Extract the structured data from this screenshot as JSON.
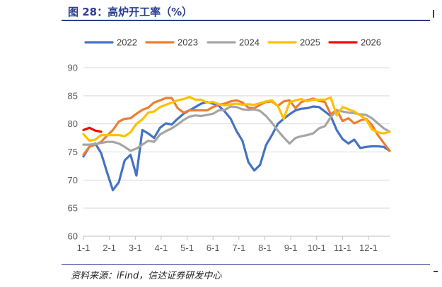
{
  "header": {
    "title": "图 28：高炉开工率（%）"
  },
  "footer": {
    "source": "资料来源：iFind，信达证券研发中心"
  },
  "chart_data": {
    "type": "line",
    "title": "高炉开工率（%）",
    "xlabel": "",
    "ylabel": "",
    "ylim": [
      60,
      90
    ],
    "yticks": [
      60,
      65,
      70,
      75,
      80,
      85,
      90
    ],
    "x_ticks": [
      "1-1",
      "2-1",
      "3-1",
      "4-1",
      "5-1",
      "6-1",
      "7-1",
      "8-1",
      "9-1",
      "10-1",
      "11-1",
      "12-1"
    ],
    "x_unit": "week",
    "grid": true,
    "legend": "top",
    "series": [
      {
        "name": "2022",
        "color": "#4472C4",
        "x": [
          1,
          2,
          3,
          4,
          5,
          6,
          7,
          8,
          9,
          10,
          11,
          12,
          13,
          14,
          15,
          16,
          17,
          18,
          19,
          20,
          21,
          22,
          23,
          24,
          25,
          26,
          27,
          28,
          29,
          30,
          31,
          32,
          33,
          34,
          35,
          36,
          37,
          38,
          39,
          40,
          41,
          42,
          43,
          44,
          45,
          46,
          47,
          48,
          49,
          50,
          51,
          52,
          53
        ],
        "values": [
          74.2,
          75.9,
          76.5,
          74.8,
          71.4,
          68.2,
          69.6,
          73.5,
          74.5,
          70.8,
          78.9,
          78.3,
          77.5,
          79.3,
          80.1,
          79.9,
          80.9,
          81.8,
          82.4,
          83.0,
          83.6,
          83.9,
          83.6,
          83.2,
          82.2,
          80.9,
          78.7,
          77.0,
          73.2,
          71.7,
          72.7,
          76.2,
          78.0,
          80.0,
          80.9,
          81.7,
          82.4,
          82.7,
          82.8,
          83.1,
          83.0,
          82.2,
          81.4,
          78.9,
          77.3,
          76.5,
          77.2,
          75.7,
          75.9,
          76.0,
          76.0,
          75.9,
          75.2
        ]
      },
      {
        "name": "2023",
        "color": "#ED7D31",
        "x": [
          1,
          2,
          3,
          4,
          5,
          6,
          7,
          8,
          9,
          10,
          11,
          12,
          13,
          14,
          15,
          16,
          17,
          18,
          19,
          20,
          21,
          22,
          23,
          24,
          25,
          26,
          27,
          28,
          29,
          30,
          31,
          32,
          33,
          34,
          35,
          36,
          37,
          38,
          39,
          40,
          41,
          42,
          43,
          44,
          45,
          46,
          47,
          48,
          49,
          50,
          51,
          52,
          53
        ],
        "values": [
          74.5,
          75.9,
          76.3,
          76.8,
          77.9,
          78.9,
          80.4,
          80.9,
          81.0,
          81.8,
          82.5,
          82.9,
          83.8,
          84.2,
          84.6,
          84.6,
          82.8,
          82.0,
          82.4,
          82.4,
          82.4,
          82.4,
          83.0,
          83.4,
          83.6,
          84.0,
          84.2,
          83.8,
          82.9,
          82.8,
          83.4,
          83.9,
          84.0,
          83.2,
          84.0,
          84.2,
          82.8,
          83.9,
          84.2,
          84.5,
          84.1,
          83.9,
          81.7,
          82.5,
          80.5,
          81.0,
          80.1,
          80.6,
          80.9,
          79.8,
          78.0,
          76.6,
          75.2
        ]
      },
      {
        "name": "2024",
        "color": "#A5A5A5",
        "x": [
          1,
          2,
          3,
          4,
          5,
          6,
          7,
          8,
          9,
          10,
          11,
          12,
          13,
          14,
          15,
          16,
          17,
          18,
          19,
          20,
          21,
          22,
          23,
          24,
          25,
          26,
          27,
          28,
          29,
          30,
          31,
          32,
          33,
          34,
          35,
          36,
          37,
          38,
          39,
          40,
          41,
          42,
          43,
          44,
          45,
          46,
          47,
          48,
          49,
          50,
          51,
          52,
          53
        ],
        "values": [
          76.3,
          76.3,
          76.4,
          76.6,
          76.8,
          76.8,
          76.5,
          75.9,
          75.2,
          75.6,
          76.3,
          77.0,
          76.8,
          78.1,
          78.7,
          79.2,
          79.9,
          80.7,
          81.3,
          81.5,
          81.4,
          81.6,
          81.8,
          82.4,
          82.5,
          83.1,
          83.0,
          82.6,
          82.5,
          82.6,
          82.3,
          81.4,
          80.2,
          78.8,
          77.6,
          76.5,
          77.5,
          77.8,
          78.0,
          78.3,
          79.2,
          79.6,
          81.2,
          82.4,
          82.2,
          82.0,
          81.9,
          81.7,
          81.6,
          81.0,
          80.1,
          79.2,
          78.6
        ]
      },
      {
        "name": "2025",
        "color": "#FFC000",
        "x": [
          1,
          2,
          3,
          4,
          5,
          6,
          7,
          8,
          9,
          10,
          11,
          12,
          13,
          14,
          15,
          16,
          17,
          18,
          19,
          20,
          21,
          22,
          23,
          24,
          25,
          26,
          27,
          28,
          29,
          30,
          31,
          32,
          33,
          34,
          35,
          36,
          37,
          38,
          39,
          40,
          41,
          42,
          43,
          44,
          45,
          46,
          47,
          48,
          49,
          50,
          51,
          52,
          53
        ],
        "values": [
          78.2,
          77.0,
          77.2,
          78.0,
          78.0,
          78.0,
          78.0,
          77.8,
          78.5,
          80.0,
          80.8,
          82.0,
          82.2,
          83.0,
          83.4,
          83.8,
          84.2,
          84.4,
          84.8,
          84.3,
          84.3,
          83.8,
          83.9,
          83.5,
          83.3,
          83.5,
          83.6,
          83.4,
          83.5,
          83.4,
          83.7,
          84.0,
          84.2,
          83.2,
          80.9,
          83.8,
          84.2,
          84.4,
          84.0,
          84.3,
          84.3,
          84.3,
          84.7,
          81.5,
          83.0,
          82.6,
          82.2,
          81.5,
          80.8,
          79.0,
          78.5,
          78.3,
          78.6
        ]
      },
      {
        "name": "2026",
        "color": "#FF0000",
        "x": [
          1,
          2,
          3,
          4
        ],
        "values": [
          78.9,
          79.3,
          78.8,
          78.6
        ]
      }
    ]
  }
}
